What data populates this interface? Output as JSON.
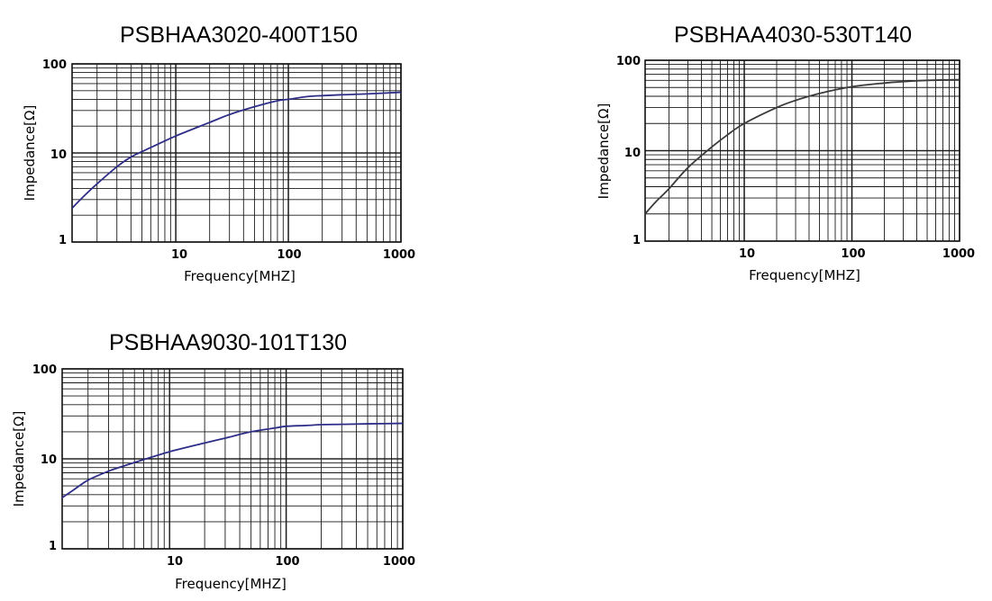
{
  "chart_data": [
    {
      "type": "line",
      "title": "PSBHAA3020-400T150",
      "xlabel": "Frequency[MHZ]",
      "ylabel": "Impedance[Ω]",
      "x_scale": "log",
      "y_scale": "log",
      "xlim": [
        1.2,
        1000
      ],
      "ylim": [
        1,
        100
      ],
      "x_ticks": [
        "10",
        "100",
        "1000"
      ],
      "y_ticks": [
        "1",
        "10",
        "100"
      ],
      "grid": true,
      "series_color": "#2e2e88",
      "series": [
        {
          "x": [
            1.2,
            1.5,
            2,
            3,
            4,
            6,
            10,
            20,
            30,
            50,
            80,
            100,
            150,
            200,
            300,
            500,
            1000
          ],
          "y": [
            2.4,
            3.2,
            4.5,
            7,
            9,
            11.5,
            15.5,
            22,
            27,
            33,
            38.5,
            40,
            43,
            44,
            45,
            46,
            48
          ]
        }
      ]
    },
    {
      "type": "line",
      "title": "PSBHAA4030-530T140",
      "xlabel": "Frequency[MHZ]",
      "ylabel": "Impedance[Ω]",
      "x_scale": "log",
      "y_scale": "log",
      "xlim": [
        1.2,
        1000
      ],
      "ylim": [
        1,
        100
      ],
      "x_ticks": [
        "10",
        "100",
        "1000"
      ],
      "y_ticks": [
        "1",
        "10",
        "100"
      ],
      "grid": true,
      "series_color": "#3a3a3a",
      "series": [
        {
          "x": [
            1.2,
            1.5,
            2,
            3,
            5,
            7,
            10,
            20,
            30,
            50,
            100,
            200,
            300,
            500,
            1000
          ],
          "y": [
            2,
            2.7,
            3.8,
            6.5,
            11,
            15,
            20,
            30,
            36,
            43,
            51,
            56,
            58,
            60,
            61
          ]
        }
      ]
    },
    {
      "type": "line",
      "title": "PSBHAA9030-101T130",
      "xlabel": "Frequency[MHZ]",
      "ylabel": "Impedance[Ω]",
      "x_scale": "log",
      "y_scale": "log",
      "xlim": [
        1.2,
        1000
      ],
      "ylim": [
        1,
        100
      ],
      "x_ticks": [
        "10",
        "100",
        "1000"
      ],
      "y_ticks": [
        "1",
        "10",
        "100"
      ],
      "grid": true,
      "series_color": "#2e2e88",
      "series": [
        {
          "x": [
            1.2,
            1.5,
            2,
            3,
            4,
            6,
            10,
            20,
            30,
            50,
            80,
            100,
            150,
            200,
            300,
            500,
            1000
          ],
          "y": [
            3.7,
            4.5,
            5.8,
            7.3,
            8.3,
            9.8,
            12,
            15,
            17,
            20,
            22,
            23,
            23.5,
            24,
            24.2,
            24.5,
            24.8
          ]
        }
      ]
    }
  ]
}
